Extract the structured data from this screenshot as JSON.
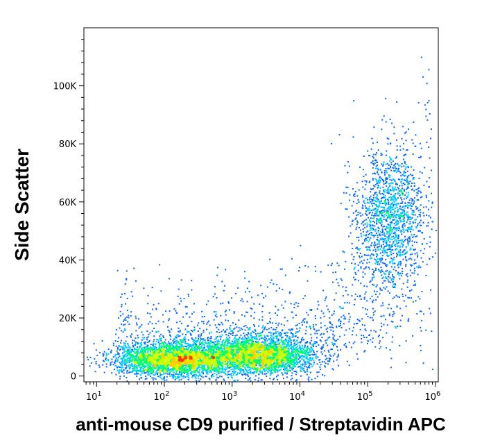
{
  "chart_data": {
    "type": "scatter",
    "subtype": "flow-cytometry-density-dot-plot",
    "xlabel": "anti-mouse CD9 purified / Streptavidin APC",
    "ylabel": "Side Scatter",
    "x_scale": "log",
    "x_range": [
      6.5,
      1100000
    ],
    "y_range": [
      -2000,
      120000
    ],
    "x_ticks": [
      {
        "value": 10,
        "base": "10",
        "exp": "1"
      },
      {
        "value": 100,
        "base": "10",
        "exp": "2"
      },
      {
        "value": 1000,
        "base": "10",
        "exp": "3"
      },
      {
        "value": 10000,
        "base": "10",
        "exp": "4"
      },
      {
        "value": 100000,
        "base": "10",
        "exp": "5"
      },
      {
        "value": 1000000,
        "base": "10",
        "exp": "6"
      }
    ],
    "y_ticks": [
      {
        "value": 0,
        "label": "0"
      },
      {
        "value": 20000,
        "label": "20K"
      },
      {
        "value": 40000,
        "label": "40K"
      },
      {
        "value": 60000,
        "label": "60K"
      },
      {
        "value": 80000,
        "label": "80K"
      },
      {
        "value": 100000,
        "label": "100K"
      }
    ],
    "grid": false,
    "color_scale": [
      "#0000cc",
      "#0066ff",
      "#00ccff",
      "#00ff66",
      "#ccff00",
      "#ffcc00",
      "#ff3300"
    ],
    "populations": [
      {
        "description": "CD9-negative low-SSC cluster",
        "x_center": 150,
        "x_log_spread": 0.45,
        "y_center": 6000,
        "y_spread": 3000,
        "relative_density": 1.0
      },
      {
        "description": "CD9-dim low-SSC cluster",
        "x_center": 2500,
        "x_log_spread": 0.4,
        "y_center": 7500,
        "y_spread": 3500,
        "relative_density": 0.85
      },
      {
        "description": "CD9-positive high-SSC cluster",
        "x_center": 200000,
        "x_log_spread": 0.25,
        "y_center": 55000,
        "y_spread": 12000,
        "relative_density": 0.45
      }
    ]
  }
}
